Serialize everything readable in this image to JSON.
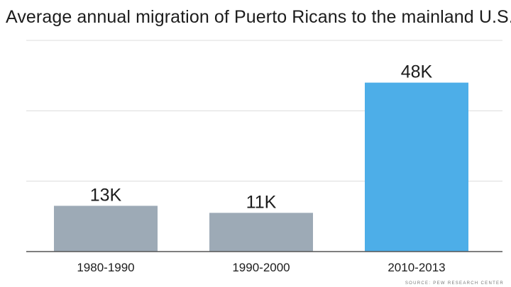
{
  "chart_data": {
    "type": "bar",
    "title": "Average annual migration of Puerto Ricans to the mainland U.S.",
    "categories": [
      "1980-1990",
      "1990-2000",
      "2010-2013"
    ],
    "values": [
      13,
      11,
      48
    ],
    "data_labels": [
      "13K",
      "11K",
      "48K"
    ],
    "unit": "thousands",
    "ylim": [
      0,
      60
    ],
    "grid": true,
    "bar_colors": [
      "#9daab6",
      "#9daab6",
      "#4daee8"
    ],
    "source": "SOURCE: PEW RESEARCH CENTER"
  },
  "colors": {
    "grid": "#dcdcdc",
    "axis": "#555555",
    "label_text": "#1c1c1c"
  }
}
